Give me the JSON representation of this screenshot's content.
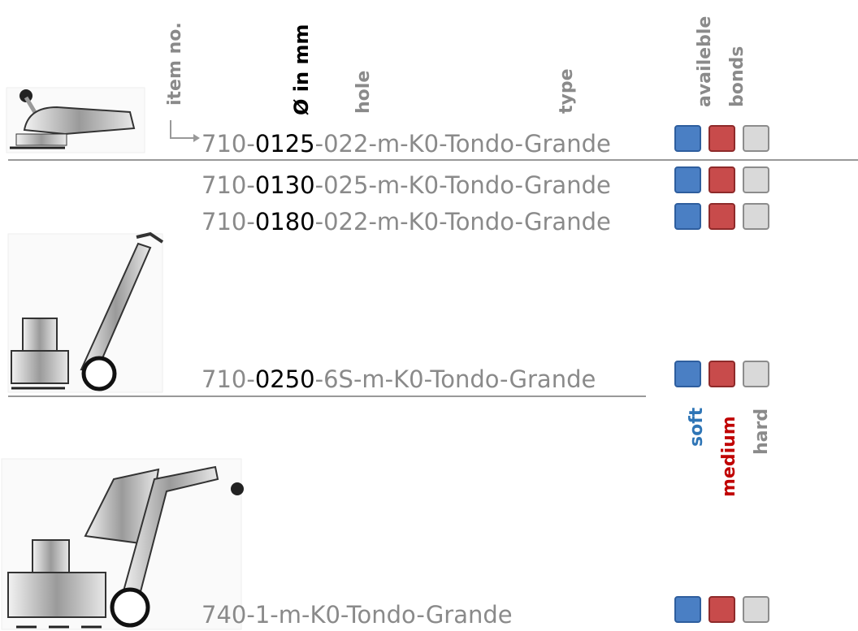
{
  "headers": [
    "item no.",
    "Ø in mm",
    "hole",
    "type",
    "availeble",
    "bonds"
  ],
  "rows": [
    [
      "710-",
      "0125",
      "-022-m-K0-Tondo-Grande"
    ],
    [
      "710-",
      "0130",
      "-025-m-K0-Tondo-Grande"
    ],
    [
      "710-",
      "0180",
      "-022-m-K0-Tondo-Grande"
    ],
    [
      "710-",
      "0250",
      "-6S-m-K0-Tondo-Grande"
    ],
    [
      "740-1-m-K0-Tondo-Grande"
    ]
  ],
  "legend": [
    "soft",
    "medium",
    "hard"
  ]
}
